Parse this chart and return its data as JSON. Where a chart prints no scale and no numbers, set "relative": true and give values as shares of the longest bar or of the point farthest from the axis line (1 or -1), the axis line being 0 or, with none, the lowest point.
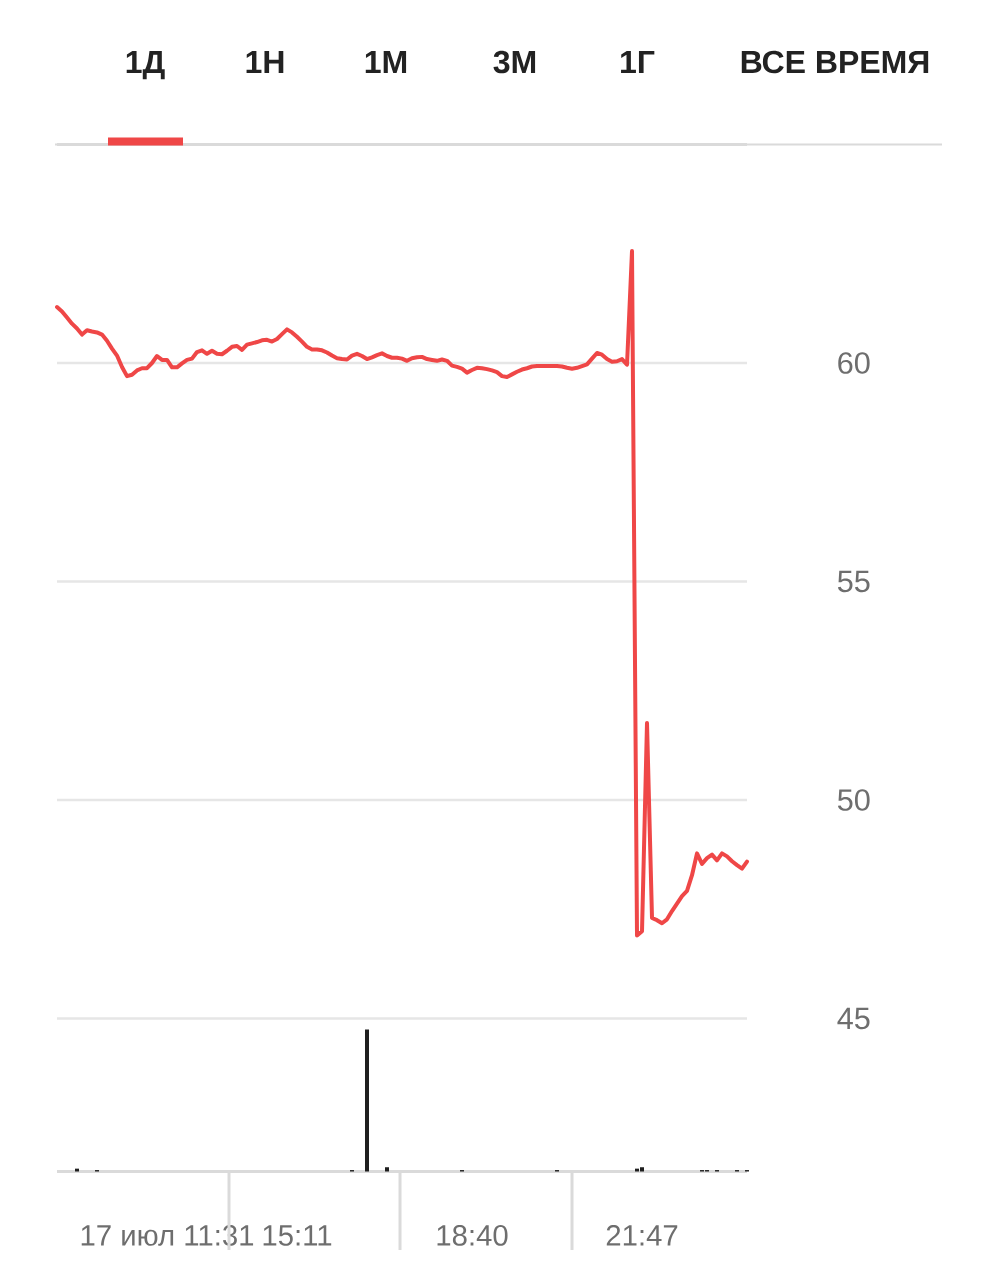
{
  "chart_data": [
    {
      "type": "line",
      "annotations": [
        "1Д",
        "1Н",
        "1М",
        "3М",
        "1Г",
        "ВСЕ ВРЕМЯ"
      ],
      "categories": [
        null,
        null,
        null,
        null,
        null,
        null,
        null,
        null,
        null,
        null,
        null,
        null,
        null,
        null,
        null,
        null,
        null,
        null,
        null,
        null,
        null,
        null,
        "17 июл 11:31",
        null,
        null,
        null,
        null,
        null,
        null,
        null,
        null,
        null,
        null,
        null,
        null,
        null,
        null,
        null,
        null,
        null,
        null,
        null,
        null,
        null,
        null,
        null,
        null,
        null,
        "15:11",
        null,
        null,
        null,
        null,
        null,
        null,
        null,
        null,
        null,
        null,
        null,
        null,
        null,
        null,
        null,
        null,
        null,
        null,
        null,
        null,
        null,
        null,
        null,
        null,
        null,
        null,
        null,
        null,
        null,
        null,
        null,
        null,
        null,
        null,
        "18:40",
        null,
        null,
        null,
        null,
        null,
        null,
        null,
        null,
        null,
        null,
        null,
        null,
        null,
        null,
        null,
        null,
        null,
        null,
        null,
        null,
        null,
        null,
        null,
        null,
        null,
        null,
        null,
        null,
        null,
        null,
        null,
        null,
        null,
        "21:47",
        null,
        null,
        null,
        null,
        null,
        null,
        null,
        null,
        null,
        null,
        null,
        null,
        null,
        null,
        null,
        null,
        null,
        null,
        null,
        null,
        null
      ],
      "values": [
        61.28,
        61.18,
        61.04,
        60.9,
        60.79,
        60.65,
        60.75,
        60.72,
        60.7,
        60.65,
        60.51,
        60.33,
        60.17,
        59.91,
        59.7,
        59.73,
        59.83,
        59.88,
        59.88,
        60.0,
        60.16,
        60.07,
        60.07,
        59.9,
        59.9,
        59.99,
        60.07,
        60.1,
        60.25,
        60.29,
        60.21,
        60.28,
        60.21,
        60.2,
        60.28,
        60.37,
        60.39,
        60.3,
        60.42,
        60.45,
        60.48,
        60.52,
        60.53,
        60.49,
        60.55,
        60.66,
        60.77,
        60.7,
        60.6,
        60.49,
        60.37,
        60.31,
        60.31,
        60.29,
        60.24,
        60.17,
        60.11,
        60.09,
        60.08,
        60.17,
        60.21,
        60.16,
        60.09,
        60.13,
        60.18,
        60.22,
        60.16,
        60.12,
        60.12,
        60.1,
        60.05,
        60.11,
        60.13,
        60.14,
        60.09,
        60.07,
        60.05,
        60.08,
        60.05,
        59.94,
        59.91,
        59.87,
        59.78,
        59.84,
        59.89,
        59.88,
        59.86,
        59.83,
        59.79,
        59.7,
        59.68,
        59.74,
        59.8,
        59.85,
        59.88,
        59.92,
        59.93,
        59.93,
        59.93,
        59.93,
        59.93,
        59.92,
        59.89,
        59.87,
        59.89,
        59.93,
        59.97,
        60.1,
        60.23,
        60.19,
        60.09,
        60.03,
        60.04,
        60.09,
        59.96,
        62.56,
        46.9,
        47.0,
        51.76,
        47.3,
        47.25,
        47.18,
        47.27,
        47.46,
        47.63,
        47.8,
        47.92,
        48.28,
        48.78,
        48.54,
        48.67,
        48.75,
        48.62,
        48.78,
        48.71,
        48.6,
        48.51,
        48.43,
        48.59
      ],
      "color": "#ef4747",
      "ylim": [
        41.5,
        65
      ],
      "yticks": [
        45,
        50,
        55,
        60
      ],
      "grid": "y"
    },
    {
      "type": "bar",
      "relative": true,
      "tick_labels": false,
      "color": "#1f1f1f",
      "categories": [
        null,
        null,
        null,
        null,
        null,
        null,
        null,
        null,
        null,
        null,
        null,
        null,
        null,
        null,
        null,
        null,
        null,
        null,
        null,
        null,
        null,
        null,
        null,
        null,
        null,
        null,
        null,
        null,
        null,
        null,
        null,
        null,
        null,
        null,
        null,
        null,
        null,
        null,
        null,
        null,
        null,
        null,
        null,
        null,
        null,
        null,
        null,
        null,
        null,
        null,
        null,
        null,
        null,
        null,
        null,
        null,
        null,
        null,
        null,
        null,
        null,
        null,
        null,
        null,
        null,
        null,
        null,
        null,
        null,
        null,
        null,
        null,
        null,
        null,
        null,
        null,
        null,
        null,
        null,
        null,
        null,
        null,
        null,
        null,
        null,
        null,
        null,
        null,
        null,
        null,
        null,
        null,
        null,
        null,
        null,
        null,
        null,
        null,
        null,
        null,
        null,
        null,
        null,
        null,
        null,
        null,
        null,
        null,
        null,
        null,
        null,
        null,
        null,
        null,
        null,
        null,
        null,
        null,
        null,
        null,
        null,
        null,
        null,
        null,
        null,
        null,
        null,
        null,
        null,
        null,
        null,
        null,
        null,
        null,
        null,
        null,
        null,
        null,
        null
      ],
      "values": [
        null,
        null,
        null,
        null,
        0.02,
        null,
        null,
        null,
        0.01,
        null,
        null,
        null,
        null,
        null,
        null,
        null,
        null,
        null,
        null,
        null,
        null,
        null,
        null,
        null,
        null,
        null,
        null,
        null,
        null,
        null,
        null,
        null,
        null,
        null,
        null,
        null,
        null,
        null,
        null,
        null,
        null,
        null,
        null,
        null,
        null,
        null,
        null,
        null,
        null,
        null,
        null,
        null,
        null,
        null,
        null,
        null,
        null,
        null,
        null,
        0.01,
        null,
        null,
        1,
        null,
        null,
        null,
        0.03,
        null,
        null,
        null,
        null,
        null,
        null,
        null,
        null,
        null,
        null,
        null,
        null,
        null,
        null,
        0.01,
        null,
        null,
        null,
        null,
        null,
        null,
        null,
        null,
        null,
        null,
        null,
        null,
        null,
        null,
        null,
        null,
        null,
        null,
        0.01,
        null,
        null,
        null,
        null,
        null,
        null,
        null,
        null,
        null,
        null,
        null,
        null,
        null,
        null,
        null,
        0.02,
        0.03,
        null,
        null,
        null,
        null,
        null,
        null,
        null,
        null,
        null,
        null,
        null,
        0.01,
        0.01,
        null,
        0.01,
        null,
        null,
        null,
        0.01,
        null,
        0.01
      ]
    }
  ]
}
